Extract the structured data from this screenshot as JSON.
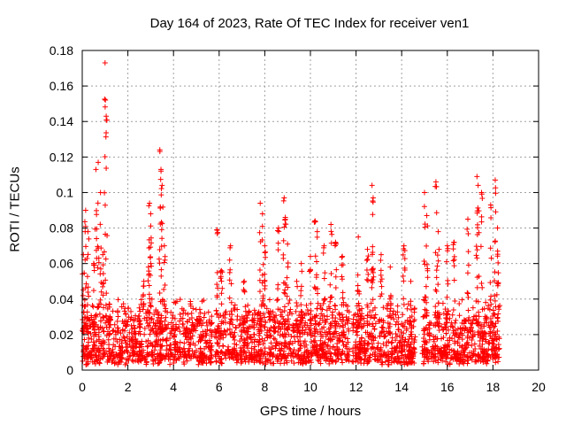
{
  "chart_data": {
    "type": "scatter",
    "title": "Day 164 of 2023, Rate Of TEC Index for receiver ven1",
    "xlabel": "GPS time / hours",
    "ylabel": "ROTI / TECUs",
    "xlim": [
      0,
      20
    ],
    "ylim": [
      0,
      0.18
    ],
    "xticks": [
      "0",
      "2",
      "4",
      "6",
      "8",
      "10",
      "12",
      "14",
      "16",
      "18",
      "20"
    ],
    "yticks": [
      "0",
      "0.02",
      "0.04",
      "0.06",
      "0.08",
      "0.1",
      "0.12",
      "0.14",
      "0.16",
      "0.18"
    ],
    "grid": true,
    "marker": "+",
    "color": "#ff0000",
    "data_segments": [
      {
        "start": 0.0,
        "end": 5.7,
        "base_max": 0.025
      },
      {
        "start": 5.8,
        "end": 11.7,
        "base_max": 0.028
      },
      {
        "start": 11.8,
        "end": 14.6,
        "base_max": 0.025
      },
      {
        "start": 14.9,
        "end": 18.3,
        "base_max": 0.026
      }
    ],
    "peaks": [
      {
        "x": 0.05,
        "y": 0.065
      },
      {
        "x": 0.15,
        "y": 0.09
      },
      {
        "x": 0.25,
        "y": 0.078
      },
      {
        "x": 0.5,
        "y": 0.06
      },
      {
        "x": 0.6,
        "y": 0.113
      },
      {
        "x": 0.7,
        "y": 0.117
      },
      {
        "x": 0.8,
        "y": 0.1
      },
      {
        "x": 0.9,
        "y": 0.065
      },
      {
        "x": 1.0,
        "y": 0.173
      },
      {
        "x": 1.05,
        "y": 0.143
      },
      {
        "x": 1.2,
        "y": 0.037
      },
      {
        "x": 2.5,
        "y": 0.035
      },
      {
        "x": 2.7,
        "y": 0.05
      },
      {
        "x": 2.9,
        "y": 0.058
      },
      {
        "x": 2.95,
        "y": 0.094
      },
      {
        "x": 3.0,
        "y": 0.088
      },
      {
        "x": 3.4,
        "y": 0.124
      },
      {
        "x": 3.45,
        "y": 0.113
      },
      {
        "x": 3.5,
        "y": 0.104
      },
      {
        "x": 3.6,
        "y": 0.07
      },
      {
        "x": 5.9,
        "y": 0.079
      },
      {
        "x": 6.1,
        "y": 0.056
      },
      {
        "x": 6.5,
        "y": 0.07
      },
      {
        "x": 7.1,
        "y": 0.05
      },
      {
        "x": 7.8,
        "y": 0.094
      },
      {
        "x": 7.9,
        "y": 0.088
      },
      {
        "x": 8.0,
        "y": 0.07
      },
      {
        "x": 8.6,
        "y": 0.08
      },
      {
        "x": 8.85,
        "y": 0.097
      },
      {
        "x": 8.9,
        "y": 0.086
      },
      {
        "x": 9.0,
        "y": 0.071
      },
      {
        "x": 9.4,
        "y": 0.05
      },
      {
        "x": 9.6,
        "y": 0.06
      },
      {
        "x": 10.0,
        "y": 0.064
      },
      {
        "x": 10.2,
        "y": 0.084
      },
      {
        "x": 10.3,
        "y": 0.078
      },
      {
        "x": 10.6,
        "y": 0.07
      },
      {
        "x": 10.9,
        "y": 0.082
      },
      {
        "x": 11.1,
        "y": 0.072
      },
      {
        "x": 11.4,
        "y": 0.064
      },
      {
        "x": 12.1,
        "y": 0.075
      },
      {
        "x": 12.5,
        "y": 0.068
      },
      {
        "x": 12.7,
        "y": 0.104
      },
      {
        "x": 12.75,
        "y": 0.097
      },
      {
        "x": 13.1,
        "y": 0.065
      },
      {
        "x": 13.5,
        "y": 0.058
      },
      {
        "x": 14.1,
        "y": 0.07
      },
      {
        "x": 14.4,
        "y": 0.05
      },
      {
        "x": 15.0,
        "y": 0.1
      },
      {
        "x": 15.1,
        "y": 0.087
      },
      {
        "x": 15.5,
        "y": 0.106
      },
      {
        "x": 15.6,
        "y": 0.078
      },
      {
        "x": 16.0,
        "y": 0.07
      },
      {
        "x": 16.3,
        "y": 0.072
      },
      {
        "x": 16.9,
        "y": 0.085
      },
      {
        "x": 17.3,
        "y": 0.109
      },
      {
        "x": 17.35,
        "y": 0.104
      },
      {
        "x": 17.5,
        "y": 0.1
      },
      {
        "x": 17.9,
        "y": 0.093
      },
      {
        "x": 18.1,
        "y": 0.107
      },
      {
        "x": 18.2,
        "y": 0.08
      }
    ]
  }
}
